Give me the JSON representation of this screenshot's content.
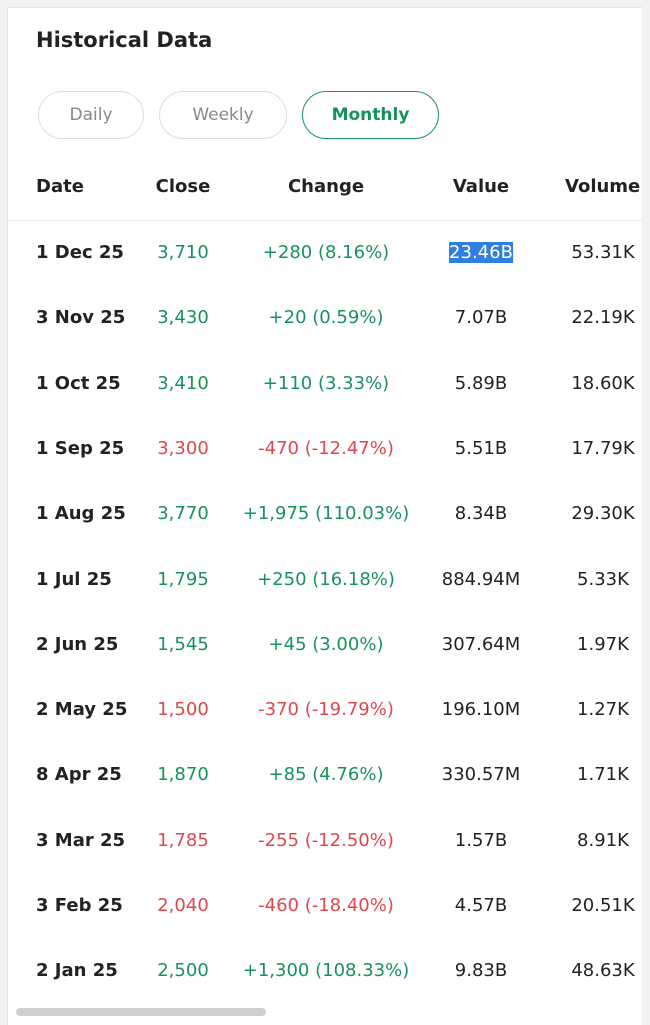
{
  "header": {
    "title": "Historical Data"
  },
  "tabs": [
    "Daily",
    "Weekly",
    "Monthly"
  ],
  "table": {
    "columns": [
      "Date",
      "Close",
      "Change",
      "Value",
      "Volume"
    ],
    "rows": [
      [
        "1 Dec 25",
        "3,710",
        "+280 (8.16%)",
        "23.46B",
        "53.31K"
      ],
      [
        "3 Nov 25",
        "3,430",
        "+20 (0.59%)",
        "7.07B",
        "22.19K"
      ],
      [
        "1 Oct 25",
        "3,410",
        "+110 (3.33%)",
        "5.89B",
        "18.60K"
      ],
      [
        "1 Sep 25",
        "3,300",
        "-470 (-12.47%)",
        "5.51B",
        "17.79K"
      ],
      [
        "1 Aug 25",
        "3,770",
        "+1,975 (110.03%)",
        "8.34B",
        "29.30K"
      ],
      [
        "1 Jul 25",
        "1,795",
        "+250 (16.18%)",
        "884.94M",
        "5.33K"
      ],
      [
        "2 Jun 25",
        "1,545",
        "+45 (3.00%)",
        "307.64M",
        "1.97K"
      ],
      [
        "2 May 25",
        "1,500",
        "-370 (-19.79%)",
        "196.10M",
        "1.27K"
      ],
      [
        "8 Apr 25",
        "1,870",
        "+85 (4.76%)",
        "330.57M",
        "1.71K"
      ],
      [
        "3 Mar 25",
        "1,785",
        "-255 (-12.50%)",
        "1.57B",
        "8.91K"
      ],
      [
        "3 Feb 25",
        "2,040",
        "-460 (-18.40%)",
        "4.57B",
        "20.51K"
      ],
      [
        "2 Jan 25",
        "2,500",
        "+1,300 (108.33%)",
        "9.83B",
        "48.63K"
      ]
    ]
  }
}
